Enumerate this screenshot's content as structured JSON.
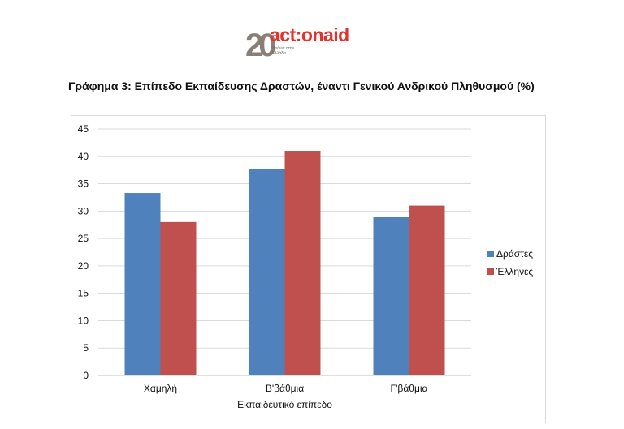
{
  "logo": {
    "number": "20",
    "wordmark": "act:onaid",
    "tagline": "Χρόνια στην Ελλάδα"
  },
  "chart_data": {
    "type": "bar",
    "title": "Γράφημα 3: Επίπεδο Εκπαίδευσης Δραστών, έναντι Γενικού Ανδρικού Πληθυσμού (%)",
    "xlabel": "Εκπαιδευτικό επίπεδο",
    "ylabel": "",
    "categories": [
      "Χαμηλή",
      "Β'βάθμια",
      "Γ'βάθμια"
    ],
    "series": [
      {
        "name": "Δράστες",
        "values": [
          33.3,
          37.7,
          29.0
        ],
        "color": "#4f81bd"
      },
      {
        "name": "Έλληνες",
        "values": [
          28.0,
          41.0,
          31.0
        ],
        "color": "#c0504d"
      }
    ],
    "ylim": [
      0,
      45
    ],
    "yticks": [
      "0",
      "5",
      "10",
      "15",
      "20",
      "25",
      "30",
      "35",
      "40",
      "45"
    ],
    "grid": true,
    "legend_position": "right",
    "gridline_color": "#d9d9d9",
    "axis_color": "#bfbfbf"
  }
}
